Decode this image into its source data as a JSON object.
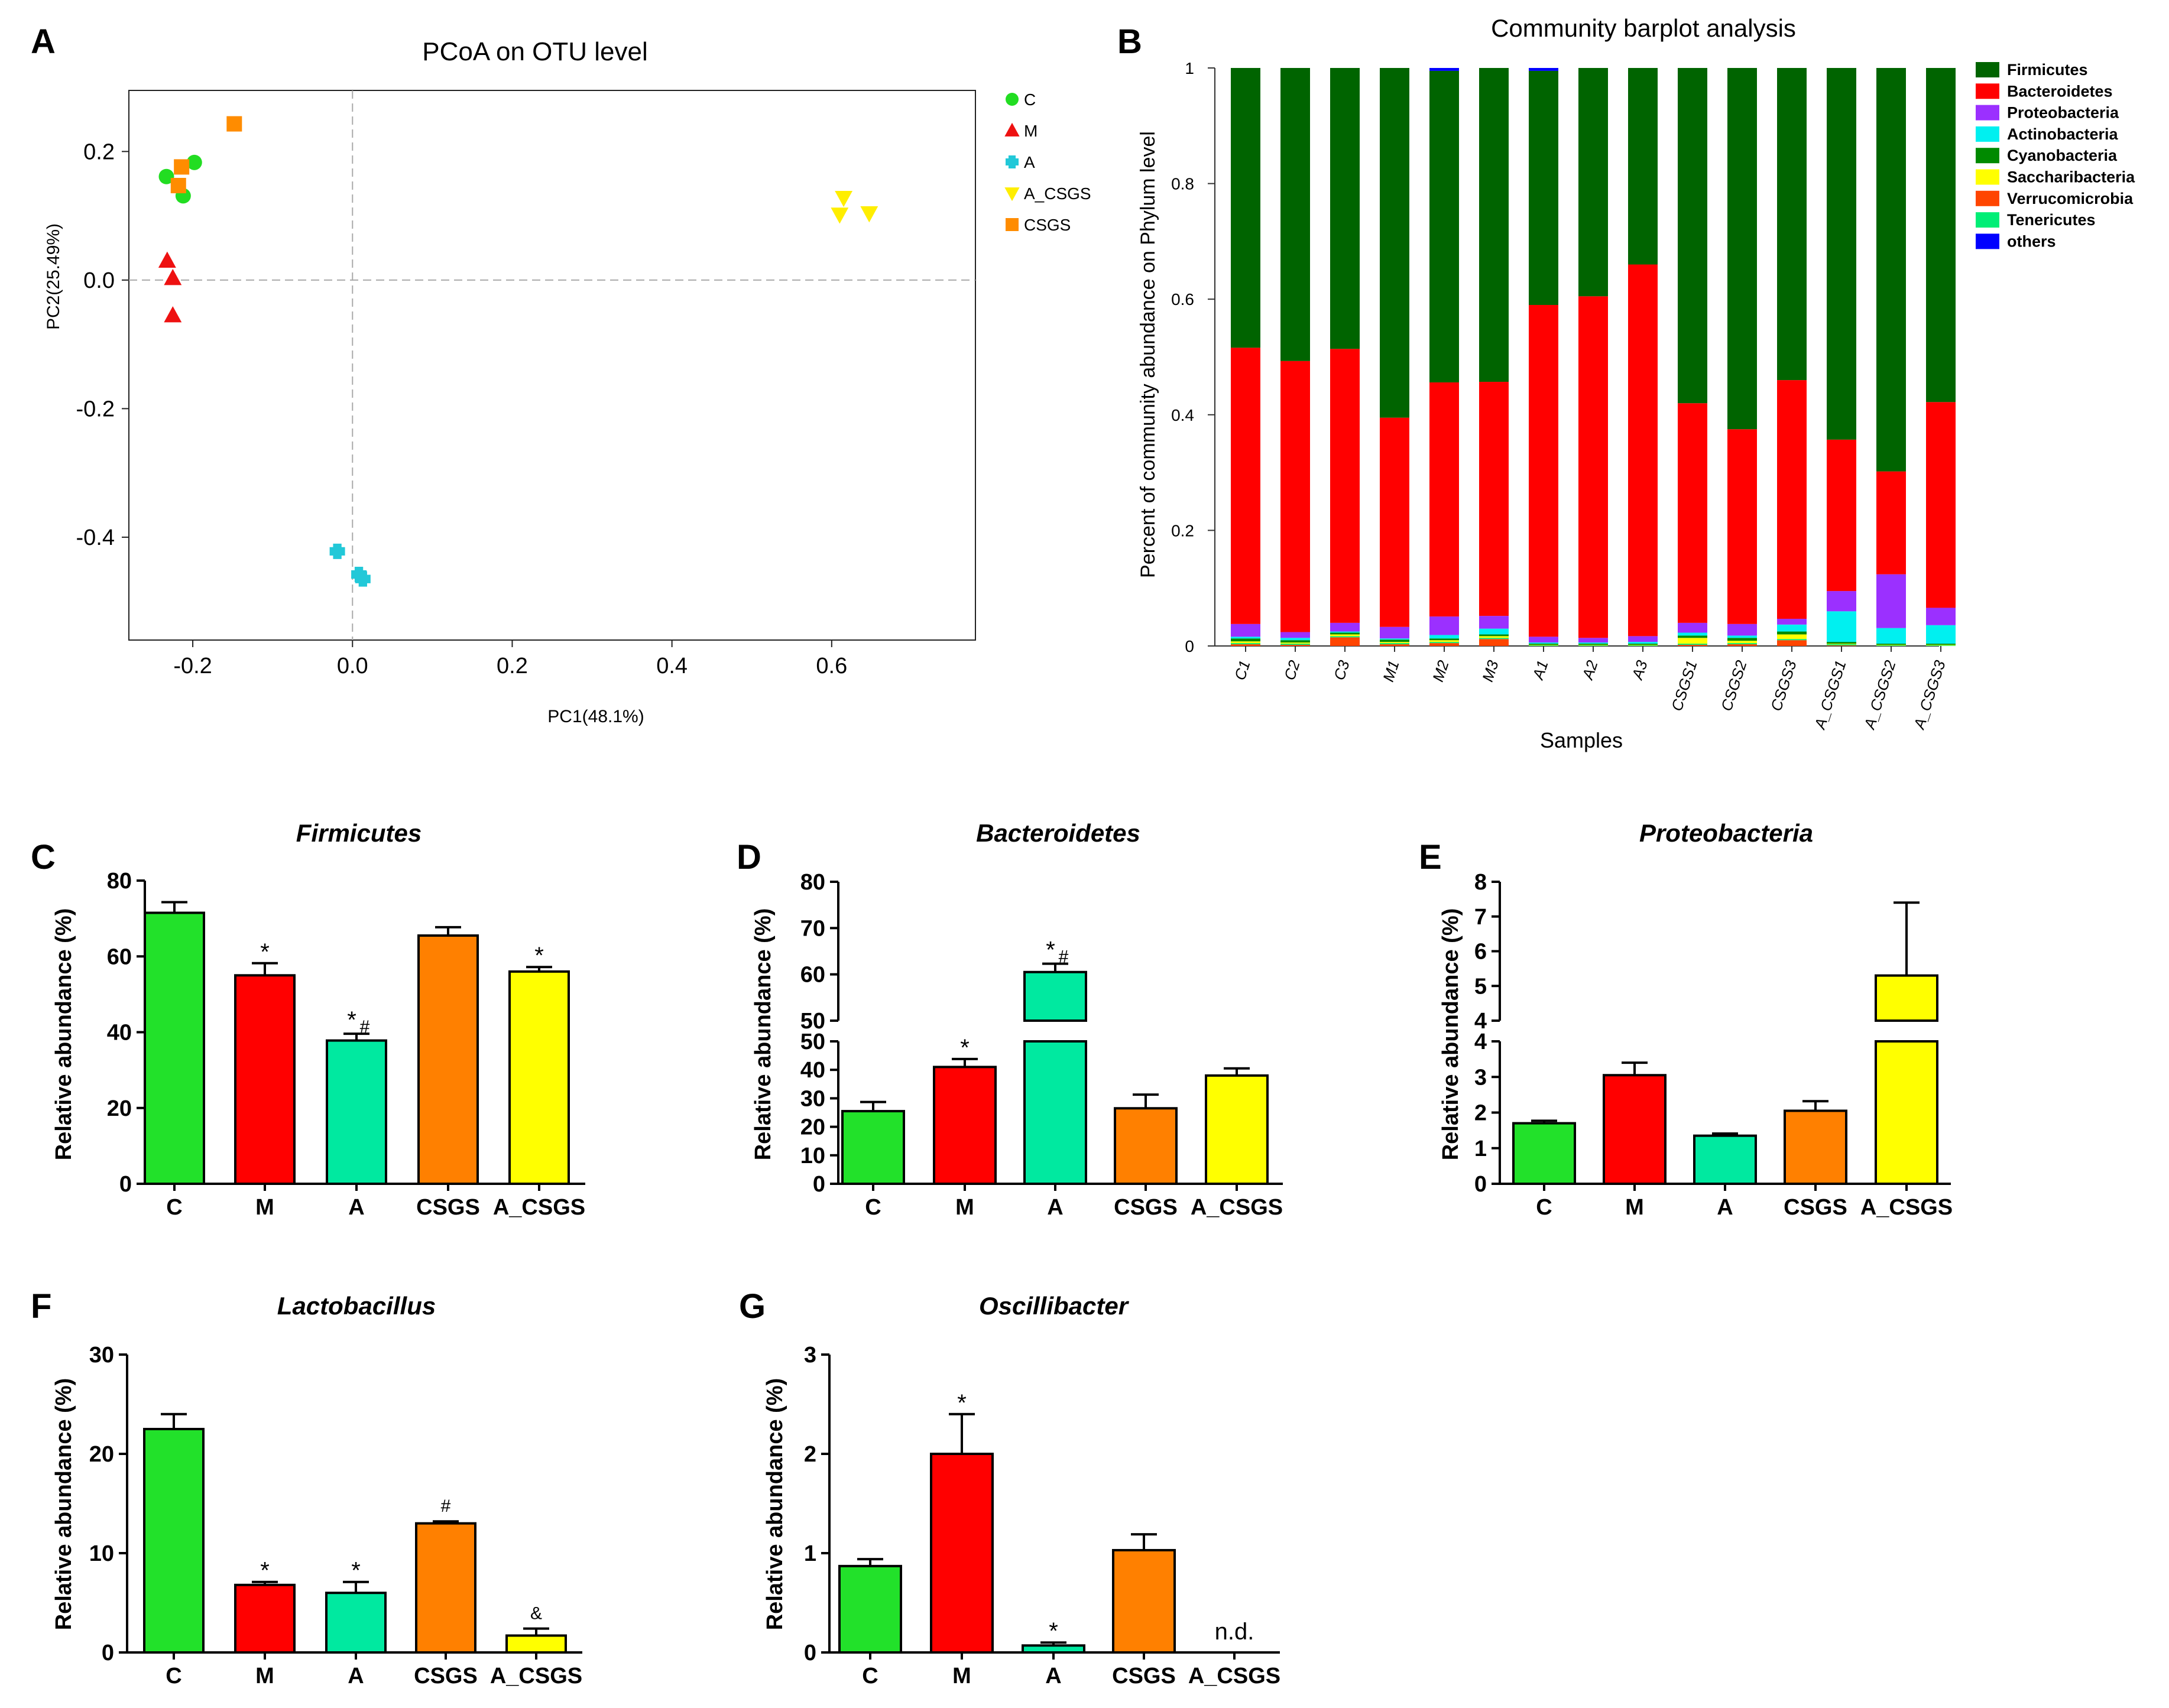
{
  "figure": {
    "colors": {
      "C": "#22e12a",
      "M": "#ff0000",
      "A": "#00e9a0",
      "CSGS": "#ff8000",
      "A_CSGS": "#ffff00",
      "Firmicutes": "#006400",
      "Bacteroidetes": "#ff0000",
      "Proteobacteria": "#9b30ff",
      "Actinobacteria": "#00f0f0",
      "Cyanobacteria": "#008a00",
      "Saccharibacteria": "#ffff00",
      "Verrucomicrobia": "#ff4500",
      "Tenericutes": "#00ee76",
      "others": "#0000ff",
      "pcoa_C": "#22dd22",
      "pcoa_M": "#ee1111",
      "pcoa_A": "#22c8d8",
      "pcoa_A_CSGS": "#ffee00",
      "pcoa_CSGS": "#ff8c00"
    },
    "panels": {
      "A": {
        "letter": "A"
      },
      "B": {
        "letter": "B"
      },
      "C": {
        "letter": "C"
      },
      "D": {
        "letter": "D"
      },
      "E": {
        "letter": "E"
      },
      "F": {
        "letter": "F"
      },
      "G": {
        "letter": "G"
      }
    }
  },
  "chart_data": [
    {
      "id": "A",
      "type": "scatter",
      "title": "PCoA on OTU level",
      "xlabel": "PC1(48.1%)",
      "ylabel": "PC2(25.49%)",
      "xlim": [
        -0.28,
        0.78
      ],
      "ylim": [
        -0.56,
        0.295
      ],
      "xticks": [
        -0.2,
        0.0,
        0.2,
        0.4,
        0.6
      ],
      "xtick_labels": [
        "-0.2",
        "0.0",
        "0.2",
        "0.4",
        "0.6"
      ],
      "yticks": [
        -0.4,
        -0.2,
        0.0,
        0.2
      ],
      "ytick_labels": [
        "-0.4",
        "-0.2",
        "0.0",
        "0.2"
      ],
      "series": [
        {
          "name": "C",
          "marker": "circle",
          "points": [
            [
              -0.233,
              0.161
            ],
            [
              -0.198,
              0.183
            ],
            [
              -0.212,
              0.131
            ]
          ]
        },
        {
          "name": "M",
          "marker": "triangle",
          "points": [
            [
              -0.232,
              0.03
            ],
            [
              -0.225,
              0.003
            ],
            [
              -0.225,
              -0.055
            ]
          ]
        },
        {
          "name": "A",
          "marker": "plus",
          "points": [
            [
              -0.019,
              -0.422
            ],
            [
              0.008,
              -0.458
            ],
            [
              0.013,
              -0.465
            ]
          ]
        },
        {
          "name": "A_CSGS",
          "marker": "triangle-down",
          "points": [
            [
              0.615,
              0.128
            ],
            [
              0.61,
              0.102
            ],
            [
              0.647,
              0.104
            ]
          ]
        },
        {
          "name": "CSGS",
          "marker": "square",
          "points": [
            [
              -0.148,
              0.243
            ],
            [
              -0.214,
              0.176
            ],
            [
              -0.218,
              0.147
            ]
          ]
        }
      ]
    },
    {
      "id": "B",
      "type": "bar",
      "stacked": true,
      "title": "Community barplot analysis",
      "xlabel": "Samples",
      "ylabel": "Percent of community abundance on Phylum level",
      "ylim": [
        0,
        1
      ],
      "yticks": [
        0,
        0.2,
        0.4,
        0.6,
        0.8,
        1
      ],
      "ytick_labels": [
        "0",
        "0.2",
        "0.4",
        "0.6",
        "0.8",
        "1"
      ],
      "categories": [
        "C1",
        "C2",
        "C3",
        "M1",
        "M2",
        "M3",
        "A1",
        "A2",
        "A3",
        "CSGS1",
        "CSGS2",
        "CSGS3",
        "A_CSGS1",
        "A_CSGS2",
        "A_CSGS3"
      ],
      "series": [
        {
          "name": "Verrucomicrobia",
          "values": [
            0.003,
            0.002,
            0.015,
            0.003,
            0.005,
            0.012,
            0,
            0,
            0,
            0.002,
            0.003,
            0.01,
            0.001,
            0,
            0
          ]
        },
        {
          "name": "Tenericutes",
          "values": [
            0.002,
            0.002,
            0.002,
            0.002,
            0.002,
            0.002,
            0.001,
            0.001,
            0.001,
            0.002,
            0.002,
            0.002,
            0.002,
            0.001,
            0.001
          ]
        },
        {
          "name": "Saccharibacteria",
          "values": [
            0.003,
            0.002,
            0.003,
            0.002,
            0.003,
            0.003,
            0.001,
            0.001,
            0.001,
            0.01,
            0.004,
            0.008,
            0.001,
            0.001,
            0.001
          ]
        },
        {
          "name": "Cyanobacteria",
          "values": [
            0.005,
            0.004,
            0.003,
            0.004,
            0.003,
            0.003,
            0.002,
            0.002,
            0.002,
            0.004,
            0.005,
            0.005,
            0.003,
            0.002,
            0.002
          ]
        },
        {
          "name": "Actinobacteria",
          "values": [
            0.003,
            0.004,
            0.002,
            0.002,
            0.006,
            0.01,
            0.002,
            0.002,
            0.003,
            0.005,
            0.004,
            0.012,
            0.053,
            0.027,
            0.032
          ]
        },
        {
          "name": "Proteobacteria",
          "values": [
            0.022,
            0.01,
            0.015,
            0.02,
            0.032,
            0.022,
            0.01,
            0.008,
            0.01,
            0.017,
            0.02,
            0.01,
            0.035,
            0.093,
            0.03
          ]
        },
        {
          "name": "Bacteroidetes",
          "values": [
            0.478,
            0.469,
            0.474,
            0.362,
            0.405,
            0.405,
            0.574,
            0.591,
            0.643,
            0.38,
            0.337,
            0.413,
            0.262,
            0.178,
            0.356
          ]
        },
        {
          "name": "Firmicutes",
          "values": [
            0.484,
            0.507,
            0.486,
            0.605,
            0.539,
            0.543,
            0.405,
            0.395,
            0.34,
            0.58,
            0.625,
            0.54,
            0.643,
            0.698,
            0.578
          ]
        },
        {
          "name": "others",
          "values": [
            0,
            0,
            0,
            0,
            0.005,
            0,
            0.005,
            0,
            0,
            0,
            0,
            0,
            0,
            0,
            0
          ]
        }
      ],
      "legend": [
        "Firmicutes",
        "Bacteroidetes",
        "Proteobacteria",
        "Actinobacteria",
        "Cyanobacteria",
        "Saccharibacteria",
        "Verrucomicrobia",
        "Tenericutes",
        "others"
      ],
      "legend_placement": "right"
    },
    {
      "id": "C",
      "type": "bar",
      "title": "Firmicutes",
      "ylabel": "Relative abundance (%)",
      "categories": [
        "C",
        "M",
        "A",
        "CSGS",
        "A_CSGS"
      ],
      "values": [
        71.5,
        55,
        37.8,
        65.5,
        56
      ],
      "errors": [
        2.8,
        3.2,
        1.8,
        2.2,
        1.2
      ],
      "annotations": [
        "",
        "*",
        "*#",
        "",
        "*"
      ],
      "ylim": [
        0,
        80
      ],
      "yticks": [
        0,
        20,
        40,
        60,
        80
      ],
      "ytick_labels": [
        "0",
        "20",
        "40",
        "60",
        "80"
      ]
    },
    {
      "id": "D",
      "type": "bar",
      "broken_axis": true,
      "title": "Bacteroidetes",
      "ylabel": "Relative abundance (%)",
      "categories": [
        "C",
        "M",
        "A",
        "CSGS",
        "A_CSGS"
      ],
      "values": [
        25.5,
        41,
        60.5,
        26.5,
        38
      ],
      "errors": [
        3.2,
        2.8,
        1.8,
        4.8,
        2.5
      ],
      "annotations": [
        "",
        "*",
        "*#",
        "",
        ""
      ],
      "lower_ylim": [
        0,
        50
      ],
      "lower_yticks": [
        0,
        10,
        20,
        30,
        40,
        50
      ],
      "lower_ytick_labels": [
        "0",
        "10",
        "20",
        "30",
        "40",
        "50"
      ],
      "upper_ylim": [
        50,
        80
      ],
      "upper_yticks": [
        50,
        60,
        70,
        80
      ],
      "upper_ytick_labels": [
        "50",
        "60",
        "70",
        "80"
      ]
    },
    {
      "id": "E",
      "type": "bar",
      "broken_axis": true,
      "title": "Proteobacteria",
      "ylabel": "Relative abundance (%)",
      "categories": [
        "C",
        "M",
        "A",
        "CSGS",
        "A_CSGS"
      ],
      "values": [
        1.7,
        3.05,
        1.35,
        2.05,
        5.3
      ],
      "errors": [
        0.07,
        0.35,
        0.06,
        0.27,
        2.1
      ],
      "annotations": [
        "",
        "",
        "",
        "",
        ""
      ],
      "lower_ylim": [
        0,
        4
      ],
      "lower_yticks": [
        0,
        1,
        2,
        3,
        4
      ],
      "lower_ytick_labels": [
        "0",
        "1",
        "2",
        "3",
        "4"
      ],
      "upper_ylim": [
        4,
        8
      ],
      "upper_yticks": [
        4,
        5,
        6,
        7,
        8
      ],
      "upper_ytick_labels": [
        "4",
        "5",
        "6",
        "7",
        "8"
      ]
    },
    {
      "id": "F",
      "type": "bar",
      "title": "Lactobacillus",
      "ylabel": "Relative abundance (%)",
      "categories": [
        "C",
        "M",
        "A",
        "CSGS",
        "A_CSGS"
      ],
      "values": [
        22.5,
        6.8,
        6,
        13,
        1.7
      ],
      "errors": [
        1.5,
        0.3,
        1.1,
        0.2,
        0.7
      ],
      "annotations": [
        "",
        "*",
        "*",
        "#",
        "&"
      ],
      "ylim": [
        0,
        30
      ],
      "yticks": [
        0,
        10,
        20,
        30
      ],
      "ytick_labels": [
        "0",
        "10",
        "20",
        "30"
      ]
    },
    {
      "id": "G",
      "type": "bar",
      "title": "Oscillibacter",
      "ylabel": "Relative abundance (%)",
      "categories": [
        "C",
        "M",
        "A",
        "CSGS",
        "A_CSGS"
      ],
      "values": [
        0.87,
        2.0,
        0.07,
        1.03,
        null
      ],
      "errors": [
        0.07,
        0.4,
        0.03,
        0.16,
        null
      ],
      "annotations": [
        "",
        "*",
        "*",
        "",
        ""
      ],
      "not_detected_label": "n.d.",
      "ylim": [
        0,
        3
      ],
      "yticks": [
        0,
        1,
        2,
        3
      ],
      "ytick_labels": [
        "0",
        "1",
        "2",
        "3"
      ]
    }
  ]
}
